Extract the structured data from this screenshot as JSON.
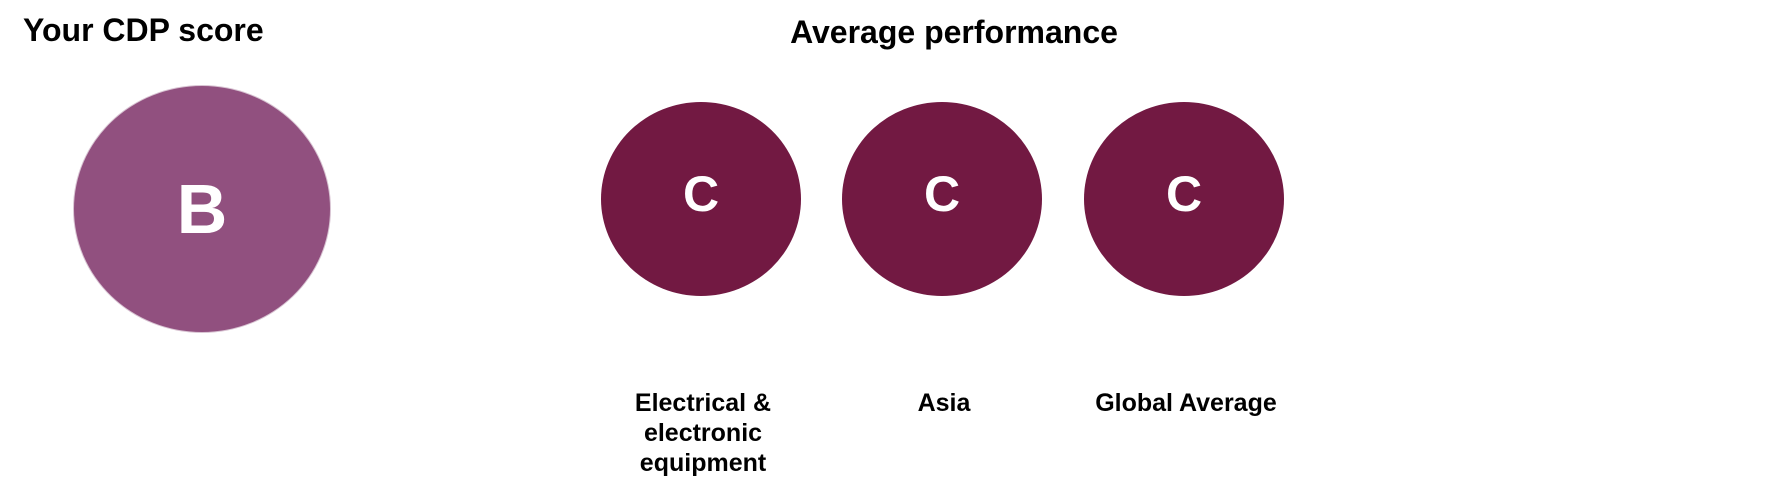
{
  "your_score": {
    "title": "Your CDP score",
    "score": "B"
  },
  "average": {
    "title": "Average performance",
    "items": [
      {
        "score": "C",
        "label": "Electrical & electronic equipment"
      },
      {
        "score": "C",
        "label": "Asia"
      },
      {
        "score": "C",
        "label": "Global Average"
      }
    ]
  }
}
